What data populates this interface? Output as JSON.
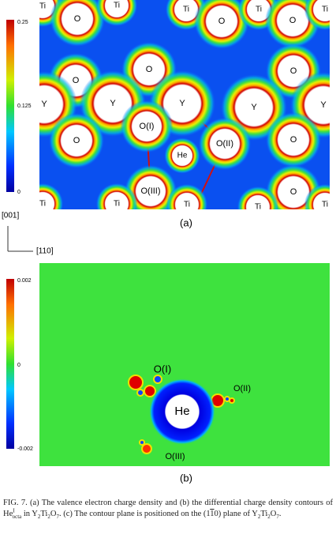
{
  "panel_a": {
    "colorbar_ticks": [
      0.25,
      0.125,
      0
    ],
    "atom_labels": [
      "Ti",
      "O",
      "Ti",
      "Ti",
      "O",
      "Ti",
      "O",
      "Ti",
      "O",
      "O",
      "O",
      "Y",
      "Y",
      "Y",
      "Y",
      "Y",
      "O(I)",
      "O",
      "O(II)",
      "O",
      "He",
      "O(III)",
      "O",
      "Ti",
      "Ti",
      "Ti",
      "Ti",
      "Ti"
    ],
    "panel_label": "(a)"
  },
  "axes": {
    "vertical": "[001]",
    "horizontal": "[110]"
  },
  "panel_b": {
    "colorbar_ticks": [
      0.002,
      0,
      -0.002
    ],
    "atom_labels": [
      "O(I)",
      "O(II)",
      "He",
      "O(III)"
    ],
    "panel_label": "(b)"
  },
  "caption": [
    "FIG. 7. (a) The valence electron charge density and (b) the differential charge density contours of He",
    "I",
    "octa",
    " in Y",
    "2",
    "Ti",
    "2",
    "O",
    "7",
    ". (c) The contour plane is positioned on the (1",
    "1",
    "0) plane of Y",
    "2",
    "Ti",
    "2",
    "O",
    "7",
    "."
  ]
}
